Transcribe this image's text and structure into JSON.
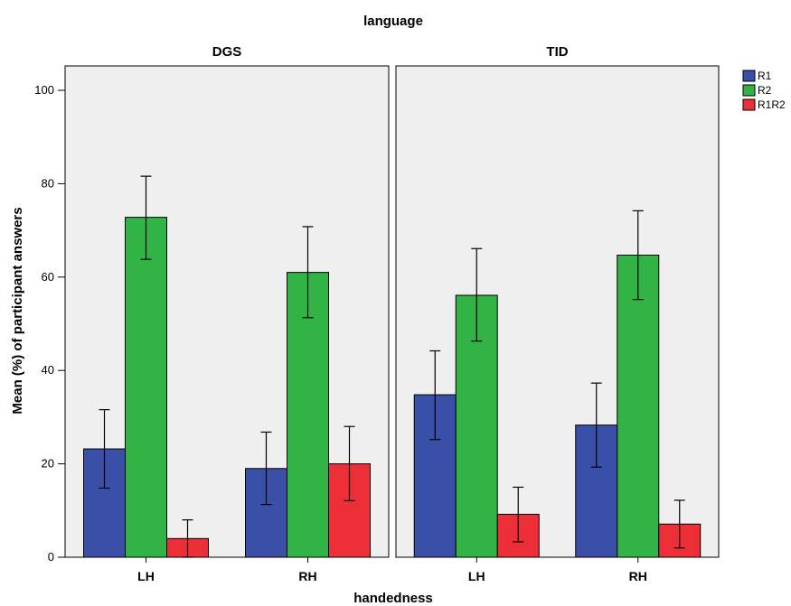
{
  "chart_data": {
    "type": "bar",
    "title": "language",
    "xlabel": "handedness",
    "ylabel": "Mean (%) of participant answers",
    "ylim": [
      0,
      100
    ],
    "yticks": [
      0,
      20,
      40,
      60,
      80,
      100
    ],
    "grid": false,
    "legend_position": "top-right",
    "categories": [
      "LH",
      "RH"
    ],
    "panels": [
      {
        "name": "DGS",
        "series": [
          {
            "name": "R1",
            "values": [
              23.2,
              19.0
            ],
            "error_low": [
              14.8,
              11.3
            ],
            "error_high": [
              31.6,
              26.8
            ]
          },
          {
            "name": "R2",
            "values": [
              72.8,
              61.0
            ],
            "error_low": [
              63.8,
              51.3
            ],
            "error_high": [
              81.6,
              70.8
            ]
          },
          {
            "name": "R1R2",
            "values": [
              4.0,
              20.0
            ],
            "error_low": [
              0.0,
              12.1
            ],
            "error_high": [
              8.0,
              28.0
            ]
          }
        ]
      },
      {
        "name": "TID",
        "series": [
          {
            "name": "R1",
            "values": [
              34.8,
              28.3
            ],
            "error_low": [
              25.2,
              19.3
            ],
            "error_high": [
              44.2,
              37.3
            ]
          },
          {
            "name": "R2",
            "values": [
              56.1,
              64.7
            ],
            "error_low": [
              46.3,
              55.2
            ],
            "error_high": [
              66.1,
              74.2
            ]
          },
          {
            "name": "R1R2",
            "values": [
              9.2,
              7.1
            ],
            "error_low": [
              3.3,
              2.0
            ],
            "error_high": [
              15.0,
              12.2
            ]
          }
        ]
      }
    ]
  },
  "colors": {
    "R1": "#3a4fa8",
    "R2": "#31b445",
    "R1R2": "#ec2f37",
    "panel_bg": "#efefef"
  }
}
